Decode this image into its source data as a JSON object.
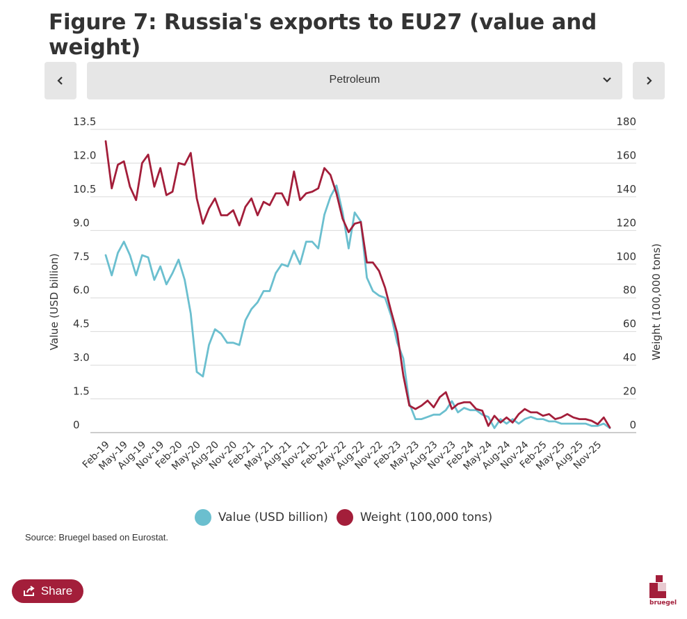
{
  "title": "Figure 7: Russia's exports to EU27 (value and weight)",
  "selector": {
    "prev_icon": "chevron-left-icon",
    "next_icon": "chevron-right-icon",
    "selected": "Petroleum",
    "dropdown_icon": "chevron-down-icon"
  },
  "chart_data": {
    "type": "line",
    "x_tick_labels": [
      "Feb-19",
      "May-19",
      "Aug-19",
      "Nov-19",
      "Feb-20",
      "May-20",
      "Aug-20",
      "Nov-20",
      "Feb-21",
      "May-21",
      "Aug-21",
      "Nov-21",
      "Feb-22",
      "May-22",
      "Aug-22",
      "Nov-22",
      "Feb-23",
      "May-23",
      "Aug-23",
      "Nov-23",
      "Feb-24",
      "May-24",
      "Aug-24",
      "Nov-24",
      "Feb-25",
      "May-25",
      "Aug-25",
      "Nov-25"
    ],
    "x_start": "Feb-19",
    "x_end": "Nov-25",
    "y_left": {
      "label": "Value (USD billion)",
      "ticks": [
        "0",
        "1.5",
        "3.0",
        "4.5",
        "6.0",
        "7.5",
        "9.0",
        "10.5",
        "12.0",
        "13.5"
      ],
      "range": [
        0,
        13.5
      ]
    },
    "y_right": {
      "label": "Weight (100,000 tons)",
      "ticks": [
        "0",
        "20",
        "40",
        "60",
        "80",
        "100",
        "120",
        "140",
        "160",
        "180"
      ],
      "range": [
        0,
        180
      ]
    },
    "series": [
      {
        "name": "Value (USD billion)",
        "axis": "left",
        "color": "#6bbfcf",
        "values": [
          7.9,
          7.0,
          8.0,
          8.5,
          7.9,
          7.0,
          7.9,
          7.8,
          6.8,
          7.4,
          6.6,
          7.1,
          7.7,
          6.8,
          5.3,
          2.7,
          2.5,
          3.9,
          4.6,
          4.4,
          4.0,
          4.0,
          3.9,
          5.0,
          5.5,
          5.8,
          6.3,
          6.3,
          7.1,
          7.5,
          7.4,
          8.1,
          7.5,
          8.5,
          8.5,
          8.2,
          9.7,
          10.5,
          11.0,
          9.8,
          8.2,
          9.8,
          9.4,
          6.9,
          6.3,
          6.1,
          6.0,
          5.2,
          4.0,
          3.3,
          1.3,
          0.6,
          0.6,
          0.7,
          0.8,
          0.8,
          1.0,
          1.4,
          0.9,
          1.1,
          1.0,
          1.0,
          0.8,
          0.7,
          0.2,
          0.6,
          0.4,
          0.6,
          0.4,
          0.6,
          0.7,
          0.6,
          0.6,
          0.5,
          0.5,
          0.4,
          0.4,
          0.4,
          0.4,
          0.4,
          0.3,
          0.3,
          0.4,
          0.2
        ]
      },
      {
        "name": "Weight (100,000 tons)",
        "axis": "right",
        "color": "#a31e3a",
        "values": [
          173,
          145,
          159,
          161,
          146,
          138,
          160,
          165,
          146,
          157,
          141,
          143,
          160,
          159,
          166,
          139,
          124,
          133,
          139,
          129,
          129,
          132,
          123,
          134,
          139,
          129,
          137,
          135,
          142,
          142,
          135,
          155,
          138,
          142,
          143,
          145,
          157,
          153,
          142,
          127,
          119,
          124,
          125,
          101,
          101,
          96,
          86,
          72,
          59,
          34,
          16,
          14,
          16,
          19,
          15,
          21,
          24,
          14,
          17,
          18,
          18,
          14,
          13,
          4,
          10,
          6,
          9,
          6,
          11,
          14,
          12,
          12,
          10,
          11,
          8,
          9,
          11,
          9,
          8,
          8,
          7,
          5,
          9,
          3
        ]
      }
    ],
    "legend_position": "bottom",
    "grid": "horizontal"
  },
  "legend": [
    {
      "label": "Value (USD billion)",
      "color": "#6bbfcf"
    },
    {
      "label": "Weight (100,000 tons)",
      "color": "#a31e3a"
    }
  ],
  "source": "Source: Bruegel based on Eurostat.",
  "share": {
    "label": "Share",
    "icon": "share-icon"
  },
  "logo": {
    "text": "bruegel",
    "color": "#a31e3a"
  }
}
